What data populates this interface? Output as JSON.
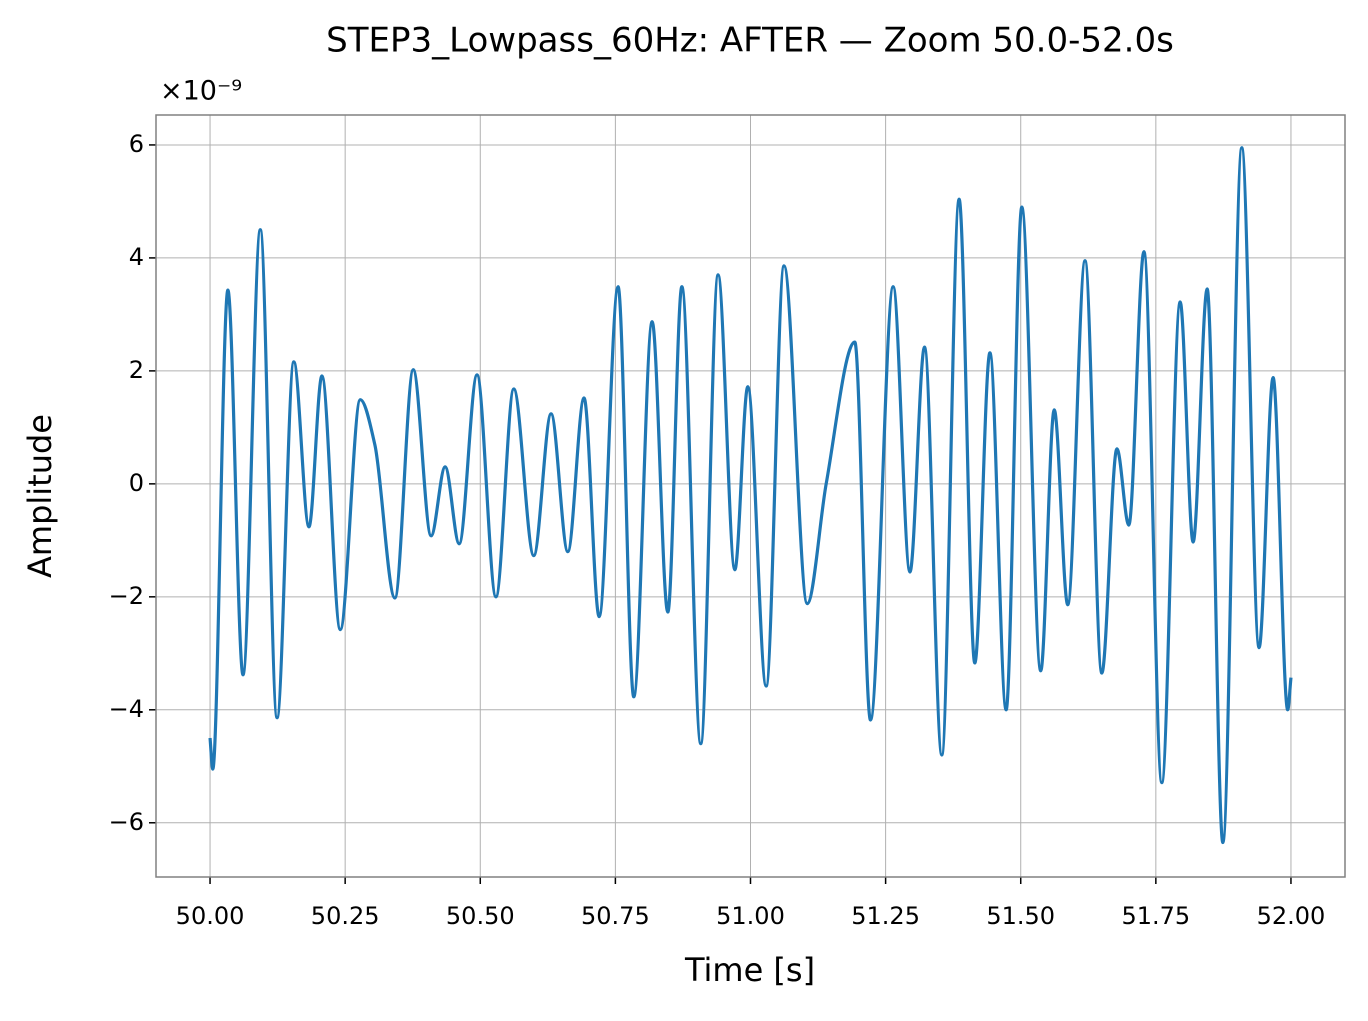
{
  "chart_data": {
    "type": "line",
    "title": "STEP3_Lowpass_60Hz: AFTER — Zoom 50.0-52.0s",
    "xlabel": "Time [s]",
    "ylabel": "Amplitude",
    "y_offset_label": "×10⁻⁹",
    "xlim": [
      49.9,
      52.1
    ],
    "ylim": [
      -6.96,
      6.53
    ],
    "xticks": [
      {
        "value": 50,
        "label": "50.00"
      },
      50.25,
      {
        "value": 50.5,
        "label": "50.50"
      },
      50.75,
      {
        "value": 51,
        "label": "51.00"
      },
      51.25,
      {
        "value": 51.5,
        "label": "51.50"
      },
      51.75,
      {
        "value": 52,
        "label": "52.00"
      }
    ],
    "yticks": [
      {
        "value": -6,
        "label": "−6"
      },
      {
        "value": -4,
        "label": "−4"
      },
      {
        "value": -2,
        "label": "−2"
      },
      0,
      2,
      4,
      6
    ],
    "grid": true,
    "series": [
      {
        "color": "#1f77b4",
        "x": [
          50.0,
          50.005,
          50.033,
          50.061,
          50.093,
          50.124,
          50.155,
          50.183,
          50.207,
          50.241,
          50.278,
          50.305,
          50.342,
          50.376,
          50.409,
          50.435,
          50.461,
          50.494,
          50.529,
          50.562,
          50.599,
          50.631,
          50.662,
          50.692,
          50.72,
          50.755,
          50.784,
          50.818,
          50.847,
          50.873,
          50.908,
          50.94,
          50.971,
          50.995,
          51.029,
          51.062,
          51.105,
          51.14,
          51.193,
          51.222,
          51.264,
          51.295,
          51.322,
          51.354,
          51.386,
          51.415,
          51.443,
          51.473,
          51.502,
          51.537,
          51.562,
          51.587,
          51.619,
          51.65,
          51.678,
          51.7,
          51.728,
          51.761,
          51.795,
          51.819,
          51.845,
          51.874,
          51.909,
          51.941,
          51.967,
          51.994,
          52.0
        ],
        "values": [
          -4.5,
          -5.05,
          3.43,
          -3.38,
          4.5,
          -4.14,
          2.16,
          -0.76,
          1.91,
          -2.58,
          1.49,
          0.69,
          -2.02,
          2.02,
          -0.92,
          0.3,
          -1.06,
          1.93,
          -2.0,
          1.68,
          -1.27,
          1.24,
          -1.2,
          1.52,
          -2.35,
          3.49,
          -3.77,
          2.87,
          -2.27,
          3.49,
          -4.6,
          3.7,
          -1.52,
          1.72,
          -3.58,
          3.86,
          -2.12,
          0.0,
          2.51,
          -4.18,
          3.49,
          -1.56,
          2.42,
          -4.8,
          5.04,
          -3.17,
          2.32,
          -4.0,
          4.9,
          -3.31,
          1.31,
          -2.14,
          3.95,
          -3.35,
          0.62,
          -0.73,
          4.11,
          -5.29,
          3.22,
          -1.03,
          3.45,
          -6.35,
          5.95,
          -2.9,
          1.88,
          -4.0,
          -3.43
        ]
      }
    ]
  }
}
